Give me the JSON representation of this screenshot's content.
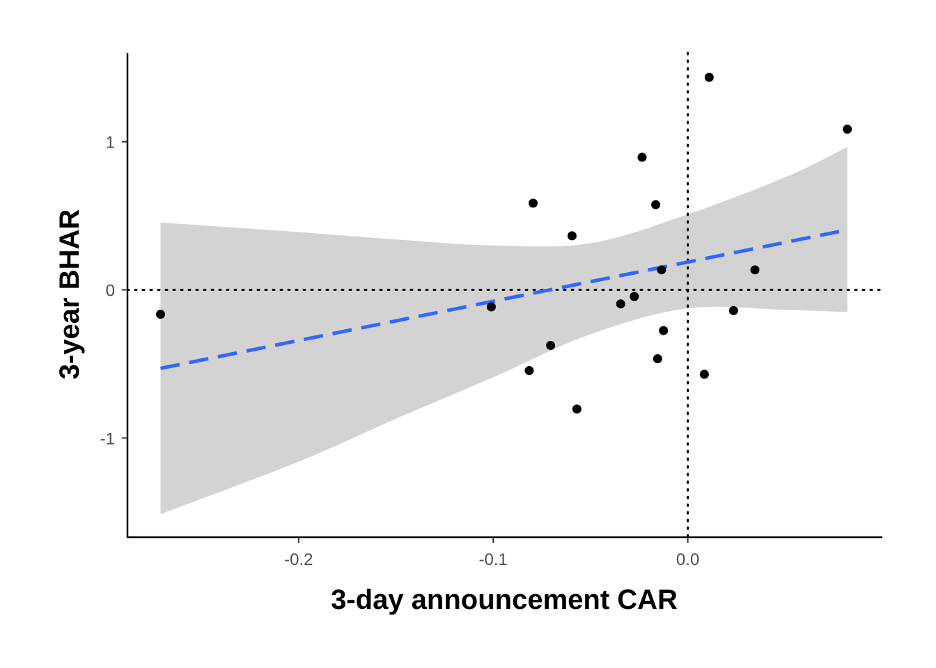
{
  "chart_data": {
    "type": "scatter",
    "title": "",
    "xlabel": "3-day announcement CAR",
    "ylabel": "3-year BHAR",
    "xlim": [
      -0.288,
      0.1
    ],
    "ylim": [
      -1.67,
      1.6
    ],
    "x_ticks": [
      -0.2,
      -0.1,
      0.0
    ],
    "x_tick_labels": [
      "-0.2",
      "-0.1",
      "0.0"
    ],
    "y_ticks": [
      -1,
      0,
      1
    ],
    "y_tick_labels": [
      "-1",
      "0",
      "1"
    ],
    "grid": false,
    "reference_lines": {
      "x": 0,
      "y": 0,
      "style": "dotted"
    },
    "series": [
      {
        "points": [
          {
            "x": -0.271,
            "y": -0.165
          },
          {
            "x": -0.101,
            "y": -0.115
          },
          {
            "x": -0.0795,
            "y": 0.585
          },
          {
            "x": -0.0815,
            "y": -0.545
          },
          {
            "x": -0.0705,
            "y": -0.375
          },
          {
            "x": -0.0595,
            "y": 0.365
          },
          {
            "x": -0.057,
            "y": -0.805
          },
          {
            "x": -0.0345,
            "y": -0.095
          },
          {
            "x": -0.0275,
            "y": -0.045
          },
          {
            "x": -0.0235,
            "y": 0.895
          },
          {
            "x": -0.0165,
            "y": 0.575
          },
          {
            "x": -0.0155,
            "y": -0.465
          },
          {
            "x": -0.0135,
            "y": 0.135
          },
          {
            "x": -0.0125,
            "y": -0.275
          },
          {
            "x": 0.0085,
            "y": -0.57
          },
          {
            "x": 0.011,
            "y": 1.435
          },
          {
            "x": 0.0235,
            "y": -0.14
          },
          {
            "x": 0.0345,
            "y": 0.135
          },
          {
            "x": 0.082,
            "y": 1.085
          }
        ]
      }
    ],
    "fit_line": {
      "style": "dashed",
      "color": "#3366ff",
      "x": [
        -0.271,
        0.082
      ],
      "y": [
        -0.53,
        0.405
      ]
    },
    "confidence_band": {
      "color": "#d3d3d3",
      "x": [
        -0.271,
        -0.2,
        -0.15,
        -0.1,
        -0.05,
        0.0,
        0.05,
        0.082
      ],
      "upper": [
        0.455,
        0.39,
        0.34,
        0.3,
        0.315,
        0.51,
        0.76,
        0.965
      ],
      "lower": [
        -1.515,
        -1.16,
        -0.87,
        -0.59,
        -0.3,
        -0.125,
        -0.135,
        -0.15
      ]
    },
    "colors": {
      "points": "#000000",
      "axis": "#000000",
      "reference": "#000000"
    }
  }
}
